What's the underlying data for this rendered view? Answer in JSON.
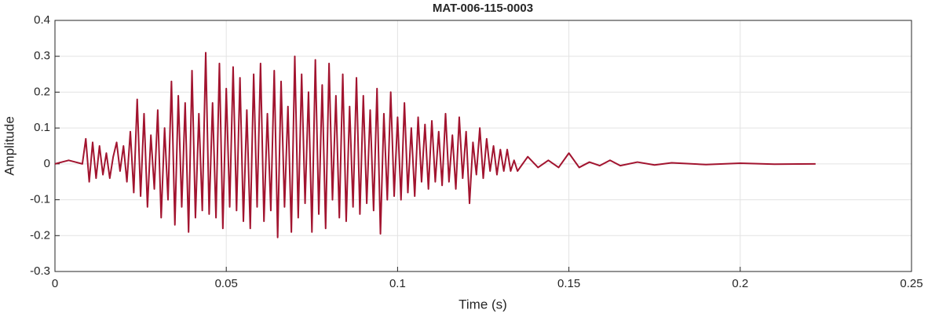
{
  "chart_data": {
    "type": "line",
    "title": "MAT-006-115-0003",
    "xlabel": "Time (s)",
    "ylabel": "Amplitude",
    "xlim": [
      0,
      0.25
    ],
    "xticks": [
      0,
      0.05,
      0.1,
      0.15,
      0.2,
      0.25
    ],
    "ylim": [
      -0.3,
      0.4
    ],
    "yticks": [
      -0.3,
      -0.2,
      -0.1,
      0,
      0.1,
      0.2,
      0.3,
      0.4
    ],
    "grid": true,
    "x": [
      0,
      0.002,
      0.004,
      0.006,
      0.008,
      0.009,
      0.01,
      0.011,
      0.012,
      0.013,
      0.014,
      0.015,
      0.016,
      0.017,
      0.018,
      0.019,
      0.02,
      0.021,
      0.022,
      0.023,
      0.024,
      0.025,
      0.026,
      0.027,
      0.028,
      0.029,
      0.03,
      0.031,
      0.032,
      0.033,
      0.034,
      0.035,
      0.036,
      0.037,
      0.038,
      0.039,
      0.04,
      0.041,
      0.042,
      0.043,
      0.044,
      0.045,
      0.046,
      0.047,
      0.048,
      0.049,
      0.05,
      0.051,
      0.052,
      0.053,
      0.054,
      0.055,
      0.056,
      0.057,
      0.058,
      0.059,
      0.06,
      0.061,
      0.062,
      0.063,
      0.064,
      0.065,
      0.066,
      0.067,
      0.068,
      0.069,
      0.07,
      0.071,
      0.072,
      0.073,
      0.074,
      0.075,
      0.076,
      0.077,
      0.078,
      0.079,
      0.08,
      0.081,
      0.082,
      0.083,
      0.084,
      0.085,
      0.086,
      0.087,
      0.088,
      0.089,
      0.09,
      0.091,
      0.092,
      0.093,
      0.094,
      0.095,
      0.096,
      0.097,
      0.098,
      0.099,
      0.1,
      0.101,
      0.102,
      0.103,
      0.104,
      0.105,
      0.106,
      0.107,
      0.108,
      0.109,
      0.11,
      0.111,
      0.112,
      0.113,
      0.114,
      0.115,
      0.116,
      0.117,
      0.118,
      0.119,
      0.12,
      0.121,
      0.122,
      0.123,
      0.124,
      0.125,
      0.126,
      0.127,
      0.128,
      0.129,
      0.13,
      0.131,
      0.132,
      0.133,
      0.134,
      0.135,
      0.138,
      0.141,
      0.144,
      0.147,
      0.15,
      0.153,
      0.156,
      0.159,
      0.162,
      0.165,
      0.17,
      0.175,
      0.18,
      0.19,
      0.2,
      0.21,
      0.222
    ],
    "series": [
      {
        "color": "#a2142f",
        "values": [
          0,
          0.005,
          0.01,
          0.005,
          0,
          0.07,
          -0.05,
          0.06,
          -0.04,
          0.05,
          -0.03,
          0.03,
          -0.04,
          0.02,
          0.06,
          -0.02,
          0.05,
          -0.05,
          0.09,
          -0.08,
          0.18,
          -0.09,
          0.14,
          -0.12,
          0.08,
          -0.07,
          0.15,
          -0.15,
          0.1,
          -0.1,
          0.23,
          -0.17,
          0.19,
          -0.12,
          0.17,
          -0.19,
          0.26,
          -0.15,
          0.14,
          -0.13,
          0.31,
          -0.14,
          0.17,
          -0.15,
          0.28,
          -0.18,
          0.21,
          -0.12,
          0.27,
          -0.13,
          0.24,
          -0.16,
          0.15,
          -0.18,
          0.25,
          -0.12,
          0.28,
          -0.16,
          0.14,
          -0.13,
          0.26,
          -0.205,
          0.23,
          -0.12,
          0.16,
          -0.19,
          0.3,
          -0.15,
          0.25,
          -0.11,
          0.2,
          -0.19,
          0.29,
          -0.14,
          0.22,
          -0.18,
          0.28,
          -0.1,
          0.19,
          -0.15,
          0.25,
          -0.16,
          0.16,
          -0.12,
          0.24,
          -0.14,
          0.19,
          -0.11,
          0.15,
          -0.13,
          0.21,
          -0.195,
          0.14,
          -0.1,
          0.2,
          -0.09,
          0.13,
          -0.1,
          0.17,
          -0.08,
          0.1,
          -0.09,
          0.13,
          -0.05,
          0.11,
          -0.07,
          0.12,
          -0.05,
          0.09,
          -0.06,
          0.14,
          -0.05,
          0.08,
          -0.07,
          0.13,
          -0.04,
          0.09,
          -0.11,
          0.06,
          -0.03,
          0.1,
          -0.04,
          0.07,
          -0.02,
          0.05,
          -0.03,
          0.04,
          -0.02,
          0.04,
          -0.02,
          0.01,
          -0.02,
          0.02,
          -0.01,
          0.01,
          -0.01,
          0.03,
          -0.01,
          0.005,
          -0.005,
          0.01,
          -0.005,
          0.005,
          -0.003,
          0.003,
          -0.002,
          0.002,
          -0.001,
          0
        ]
      }
    ]
  }
}
